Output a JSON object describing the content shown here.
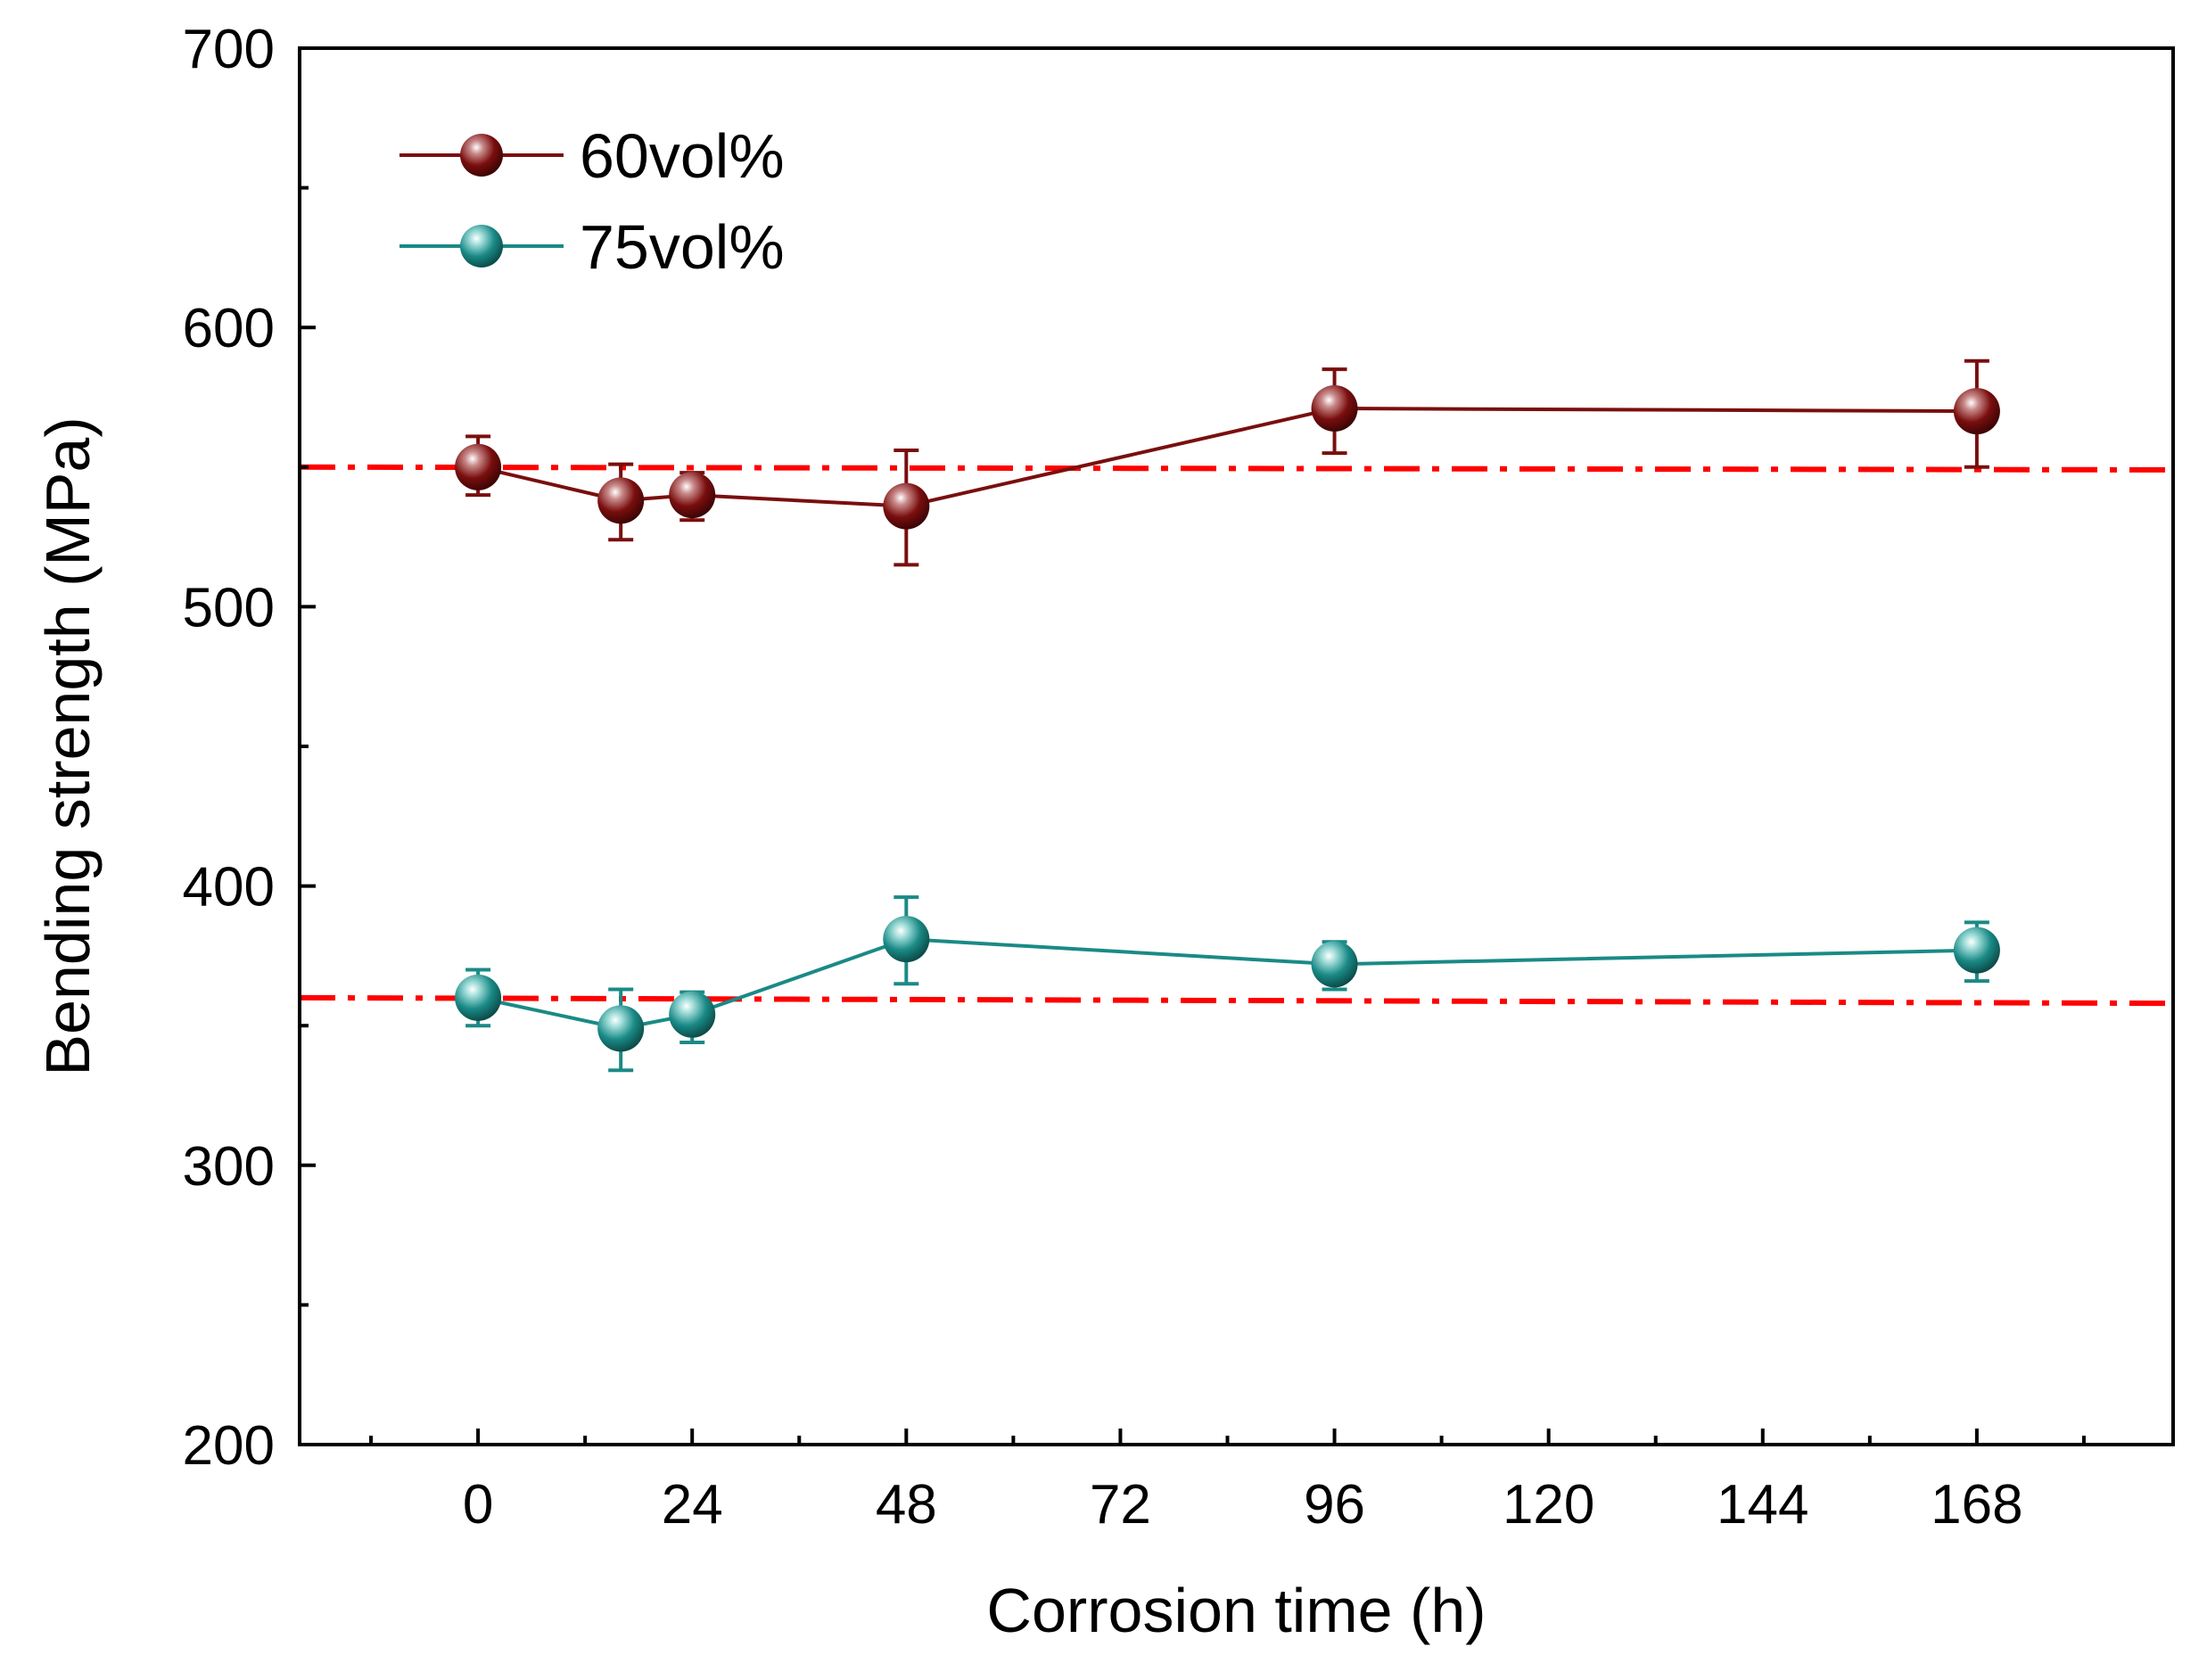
{
  "chart_data": {
    "type": "line",
    "xlabel": "Corrosion time (h)",
    "ylabel": "Bending strength (MPa)",
    "xlim": [
      -20,
      190
    ],
    "ylim": [
      200,
      700
    ],
    "x_ticks": [
      0,
      24,
      48,
      72,
      96,
      120,
      144,
      168
    ],
    "x_minor_ticks": [
      -12,
      12,
      36,
      60,
      84,
      108,
      132,
      156,
      180
    ],
    "y_ticks": [
      200,
      300,
      400,
      500,
      600,
      700
    ],
    "y_minor_ticks": [
      250,
      350,
      450,
      550,
      650
    ],
    "legend_position": "top-left",
    "series": [
      {
        "name": "60vol%",
        "color": "#7a0e0e",
        "x": [
          0,
          16,
          24,
          48,
          96,
          168
        ],
        "y": [
          550,
          538,
          540,
          536,
          571,
          570
        ],
        "err_low": [
          10,
          14,
          9,
          21,
          16,
          20
        ],
        "err_high": [
          11,
          13,
          8,
          20,
          14,
          18
        ]
      },
      {
        "name": "75vol%",
        "color": "#1a8a86",
        "x": [
          0,
          16,
          24,
          48,
          96,
          168
        ],
        "y": [
          360,
          349,
          354,
          381,
          372,
          377
        ],
        "err_low": [
          10,
          15,
          10,
          16,
          9,
          11
        ],
        "err_high": [
          10,
          14,
          8,
          15,
          8,
          10
        ]
      }
    ],
    "reference_lines": [
      {
        "y_start": 550,
        "y_end": 549,
        "color": "#ff0000",
        "style": "dash-dot"
      },
      {
        "y_start": 360,
        "y_end": 358,
        "color": "#ff0000",
        "style": "dash-dot"
      }
    ]
  }
}
